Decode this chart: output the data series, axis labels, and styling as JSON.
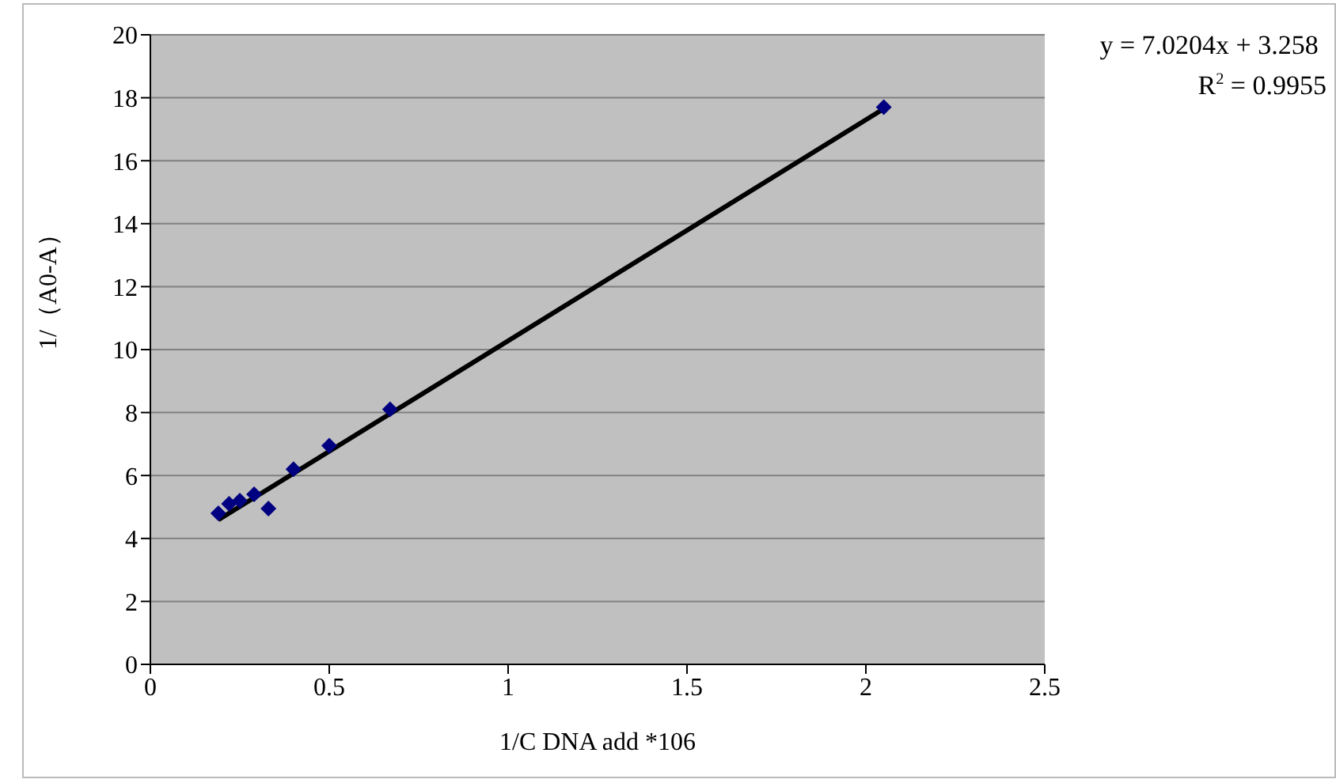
{
  "chart_data": {
    "type": "scatter",
    "xlabel": "1/C DNA add *106",
    "ylabel": "1/（A0-A）",
    "annotations": [
      "y = 7.0204x + 3.258",
      "R$^{2}$ = 0.9955"
    ],
    "xlim": [
      0,
      2.5
    ],
    "xticks": [
      0,
      {
        "value": 0.5,
        "label": "0.5"
      },
      1,
      {
        "value": 1.5,
        "label": "1.5"
      },
      2,
      {
        "value": 2.5,
        "label": "2.5"
      }
    ],
    "ylim": [
      0,
      20
    ],
    "yticks": [
      0,
      2,
      4,
      6,
      8,
      10,
      12,
      14,
      16,
      18,
      20
    ],
    "grid": "y",
    "legend": false,
    "marker": "diamond",
    "series": [
      {
        "color": "#000080",
        "x": [
          0.19,
          0.22,
          0.25,
          0.29,
          0.33,
          0.4,
          0.5,
          0.67,
          2.05
        ],
        "values": [
          4.8,
          5.1,
          5.2,
          5.4,
          4.95,
          6.2,
          6.95,
          8.1,
          17.7
        ]
      },
      {
        "type": "line",
        "color": "#000000",
        "marker": "none",
        "line_style": "solid",
        "x": [
          0.19,
          2.05
        ],
        "values": [
          4.59,
          17.65
        ]
      }
    ]
  }
}
